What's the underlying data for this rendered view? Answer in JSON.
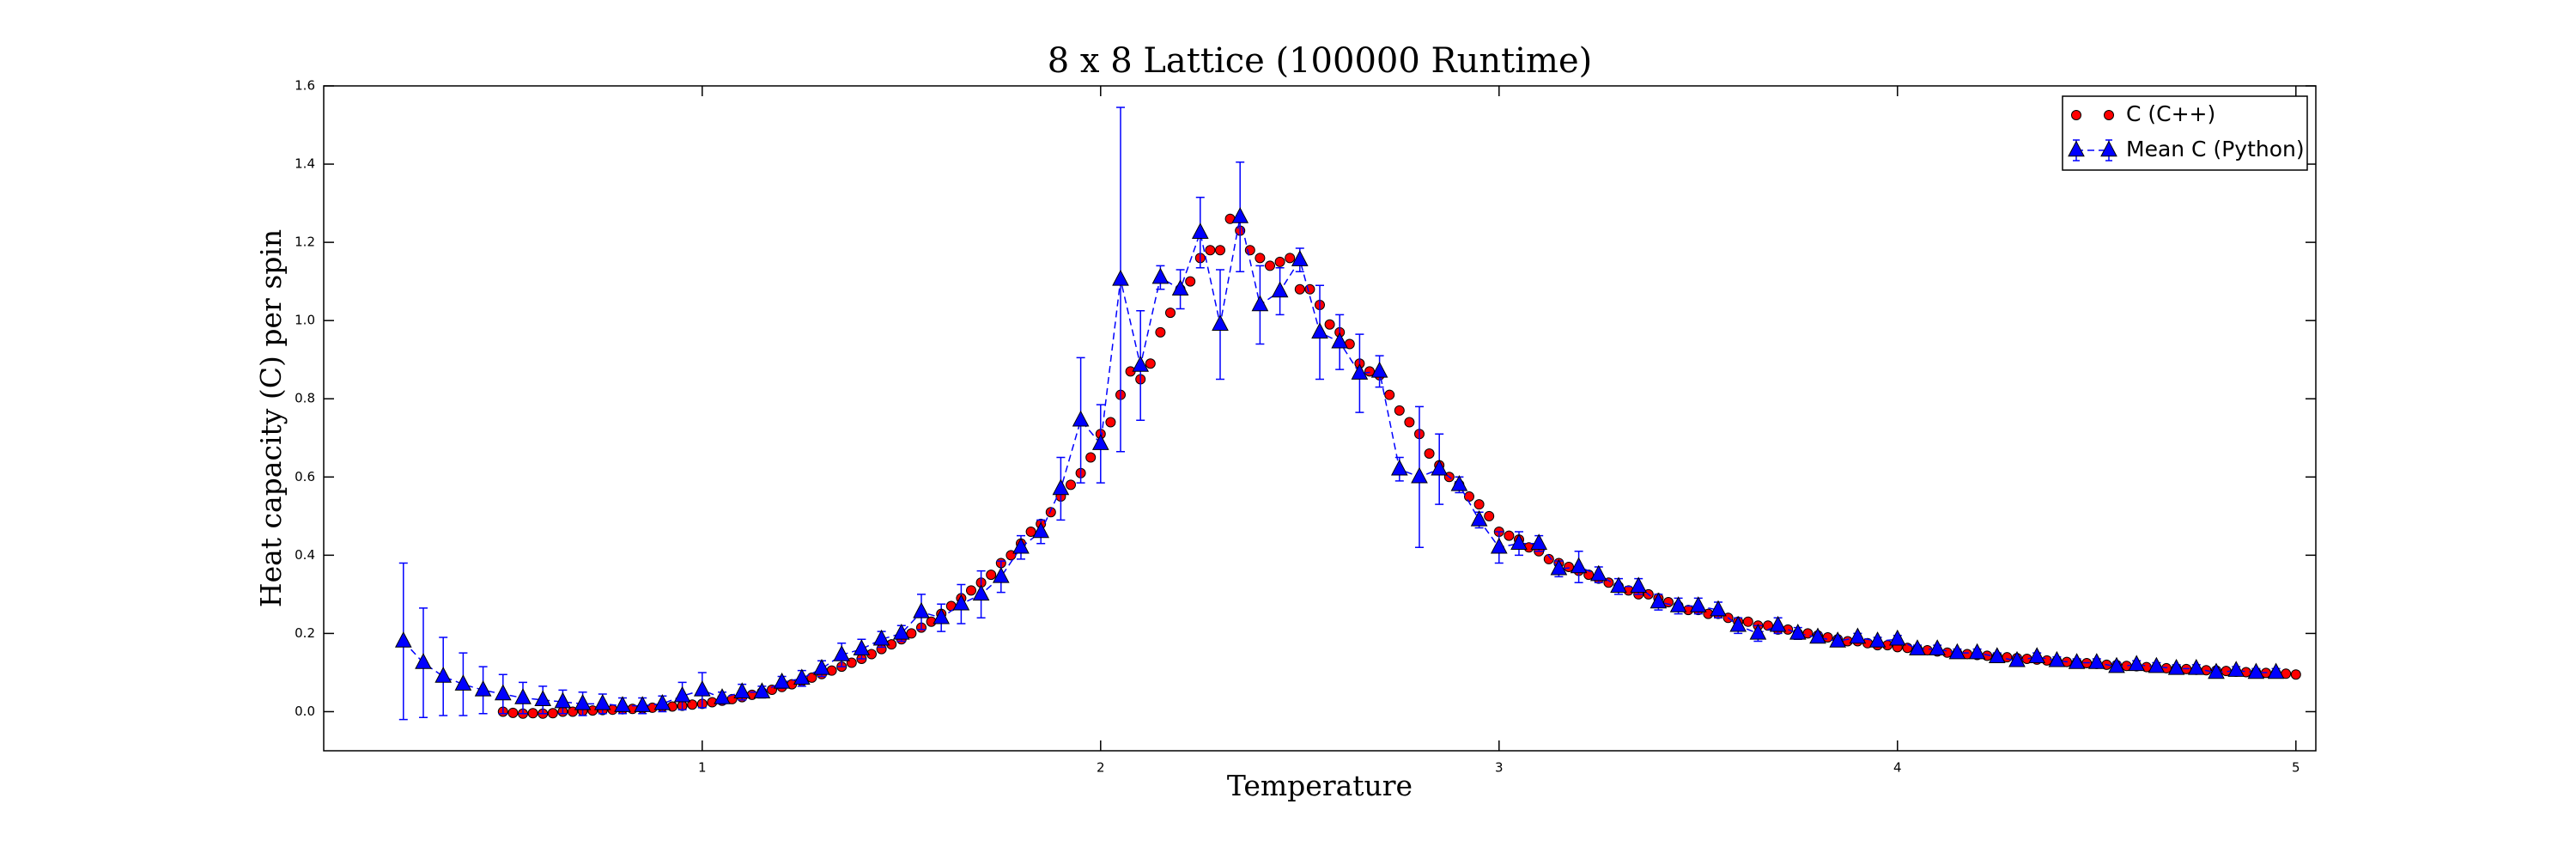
{
  "chart_data": {
    "type": "scatter",
    "title": "8 x 8 Lattice (100000 Runtime)",
    "xlabel": "Temperature",
    "ylabel": "Heat capacity (C) per spin",
    "xlim": [
      0.05,
      5.05
    ],
    "ylim": [
      -0.1,
      1.6
    ],
    "xticks": [
      1,
      2,
      3,
      4,
      5
    ],
    "yticks": [
      {
        "value": 0,
        "label": "0.0"
      },
      0.2,
      0.4,
      0.6,
      0.8,
      {
        "value": 1,
        "label": "1.0"
      },
      1.2,
      1.4,
      1.6
    ],
    "grid": false,
    "legend": "upper right",
    "series": [
      {
        "name": "C (C++)",
        "color": "#ff0000",
        "marker": "circle",
        "x": [
          0.5,
          0.525,
          0.55,
          0.575,
          0.6,
          0.625,
          0.65,
          0.675,
          0.7,
          0.725,
          0.75,
          0.775,
          0.8,
          0.825,
          0.85,
          0.875,
          0.9,
          0.925,
          0.95,
          0.975,
          1,
          1.025,
          1.05,
          1.075,
          1.1,
          1.125,
          1.15,
          1.175,
          1.2,
          1.225,
          1.25,
          1.275,
          1.3,
          1.325,
          1.35,
          1.375,
          1.4,
          1.425,
          1.45,
          1.475,
          1.5,
          1.525,
          1.55,
          1.575,
          1.6,
          1.625,
          1.65,
          1.675,
          1.7,
          1.725,
          1.75,
          1.775,
          1.8,
          1.825,
          1.85,
          1.875,
          1.9,
          1.925,
          1.95,
          1.975,
          2,
          2.025,
          2.05,
          2.075,
          2.1,
          2.125,
          2.15,
          2.175,
          2.2,
          2.225,
          2.25,
          2.275,
          2.3,
          2.325,
          2.35,
          2.375,
          2.4,
          2.425,
          2.45,
          2.475,
          2.5,
          2.525,
          2.55,
          2.575,
          2.6,
          2.625,
          2.65,
          2.675,
          2.7,
          2.725,
          2.75,
          2.775,
          2.8,
          2.825,
          2.85,
          2.875,
          2.9,
          2.925,
          2.95,
          2.975,
          3,
          3.025,
          3.05,
          3.075,
          3.1,
          3.125,
          3.15,
          3.175,
          3.2,
          3.225,
          3.25,
          3.275,
          3.3,
          3.325,
          3.35,
          3.375,
          3.4,
          3.425,
          3.45,
          3.475,
          3.5,
          3.525,
          3.55,
          3.575,
          3.6,
          3.625,
          3.65,
          3.675,
          3.7,
          3.725,
          3.75,
          3.775,
          3.8,
          3.825,
          3.85,
          3.875,
          3.9,
          3.925,
          3.95,
          3.975,
          4,
          4.025,
          4.05,
          4.075,
          4.1,
          4.125,
          4.15,
          4.175,
          4.2,
          4.225,
          4.25,
          4.275,
          4.3,
          4.325,
          4.35,
          4.375,
          4.4,
          4.425,
          4.45,
          4.475,
          4.5,
          4.525,
          4.55,
          4.575,
          4.6,
          4.625,
          4.65,
          4.675,
          4.7,
          4.725,
          4.75,
          4.775,
          4.8,
          4.825,
          4.85,
          4.875,
          4.9,
          4.925,
          4.95,
          4.975,
          5
        ],
        "values": [
          0.0,
          -0.003,
          -0.005,
          -0.004,
          -0.005,
          -0.004,
          0.0,
          0.0,
          0.002,
          0.003,
          0.004,
          0.005,
          0.006,
          0.007,
          0.008,
          0.01,
          0.012,
          0.013,
          0.015,
          0.018,
          0.02,
          0.024,
          0.028,
          0.032,
          0.037,
          0.043,
          0.05,
          0.056,
          0.063,
          0.07,
          0.078,
          0.087,
          0.096,
          0.105,
          0.115,
          0.125,
          0.135,
          0.147,
          0.16,
          0.172,
          0.185,
          0.2,
          0.215,
          0.23,
          0.25,
          0.27,
          0.29,
          0.31,
          0.33,
          0.35,
          0.38,
          0.4,
          0.43,
          0.46,
          0.48,
          0.51,
          0.55,
          0.58,
          0.61,
          0.65,
          0.71,
          0.74,
          0.81,
          0.87,
          0.85,
          0.89,
          0.97,
          1.02,
          1.08,
          1.1,
          1.16,
          1.18,
          1.18,
          1.26,
          1.23,
          1.18,
          1.16,
          1.14,
          1.15,
          1.16,
          1.08,
          1.08,
          1.04,
          0.99,
          0.97,
          0.94,
          0.89,
          0.87,
          0.86,
          0.81,
          0.77,
          0.74,
          0.71,
          0.66,
          0.63,
          0.6,
          0.58,
          0.55,
          0.53,
          0.5,
          0.46,
          0.45,
          0.44,
          0.42,
          0.41,
          0.39,
          0.38,
          0.37,
          0.36,
          0.35,
          0.34,
          0.33,
          0.32,
          0.31,
          0.3,
          0.3,
          0.29,
          0.28,
          0.27,
          0.26,
          0.26,
          0.25,
          0.25,
          0.24,
          0.23,
          0.23,
          0.22,
          0.22,
          0.21,
          0.21,
          0.2,
          0.2,
          0.195,
          0.19,
          0.185,
          0.18,
          0.18,
          0.175,
          0.17,
          0.17,
          0.165,
          0.163,
          0.16,
          0.157,
          0.154,
          0.151,
          0.149,
          0.147,
          0.145,
          0.143,
          0.141,
          0.139,
          0.137,
          0.135,
          0.133,
          0.131,
          0.129,
          0.127,
          0.125,
          0.124,
          0.122,
          0.12,
          0.119,
          0.117,
          0.116,
          0.114,
          0.113,
          0.111,
          0.11,
          0.109,
          0.107,
          0.106,
          0.105,
          0.104,
          0.102,
          0.101,
          0.1,
          0.099,
          0.098,
          0.097,
          0.095
        ]
      },
      {
        "name": "Mean C (Python)",
        "color": "#0000ff",
        "marker": "triangle",
        "x": [
          0.25,
          0.3,
          0.35,
          0.4,
          0.45,
          0.5,
          0.55,
          0.6,
          0.65,
          0.7,
          0.75,
          0.8,
          0.85,
          0.9,
          0.95,
          1,
          1.05,
          1.1,
          1.15,
          1.2,
          1.25,
          1.3,
          1.35,
          1.4,
          1.45,
          1.5,
          1.55,
          1.6,
          1.65,
          1.7,
          1.75,
          1.8,
          1.85,
          1.9,
          1.95,
          2,
          2.05,
          2.1,
          2.15,
          2.2,
          2.25,
          2.3,
          2.35,
          2.4,
          2.45,
          2.5,
          2.55,
          2.6,
          2.65,
          2.7,
          2.75,
          2.8,
          2.85,
          2.9,
          2.95,
          3,
          3.05,
          3.1,
          3.15,
          3.2,
          3.25,
          3.3,
          3.35,
          3.4,
          3.45,
          3.5,
          3.55,
          3.6,
          3.65,
          3.7,
          3.75,
          3.8,
          3.85,
          3.9,
          3.95,
          4,
          4.05,
          4.1,
          4.15,
          4.2,
          4.25,
          4.3,
          4.35,
          4.4,
          4.45,
          4.5,
          4.55,
          4.6,
          4.65,
          4.7,
          4.75,
          4.8,
          4.85,
          4.9,
          4.95
        ],
        "values": [
          0.18,
          0.125,
          0.09,
          0.07,
          0.055,
          0.045,
          0.035,
          0.03,
          0.025,
          0.02,
          0.02,
          0.015,
          0.015,
          0.02,
          0.04,
          0.055,
          0.035,
          0.05,
          0.05,
          0.075,
          0.085,
          0.11,
          0.145,
          0.16,
          0.185,
          0.2,
          0.255,
          0.24,
          0.275,
          0.3,
          0.345,
          0.42,
          0.46,
          0.57,
          0.745,
          0.685,
          1.105,
          0.885,
          1.11,
          1.08,
          1.225,
          0.99,
          1.265,
          1.04,
          1.075,
          1.155,
          0.97,
          0.945,
          0.865,
          0.87,
          0.62,
          0.6,
          0.62,
          0.58,
          0.49,
          0.42,
          0.43,
          0.43,
          0.365,
          0.37,
          0.35,
          0.32,
          0.32,
          0.28,
          0.27,
          0.27,
          0.26,
          0.22,
          0.2,
          0.22,
          0.2,
          0.19,
          0.18,
          0.19,
          0.18,
          0.185,
          0.16,
          0.16,
          0.15,
          0.15,
          0.14,
          0.13,
          0.14,
          0.13,
          0.125,
          0.125,
          0.115,
          0.12,
          0.115,
          0.11,
          0.11,
          0.1,
          0.105,
          0.1,
          0.1
        ],
        "errors": [
          0.2,
          0.14,
          0.1,
          0.08,
          0.06,
          0.05,
          0.04,
          0.035,
          0.03,
          0.03,
          0.025,
          0.02,
          0.02,
          0.02,
          0.035,
          0.045,
          0.015,
          0.02,
          0.015,
          0.015,
          0.02,
          0.02,
          0.03,
          0.025,
          0.02,
          0.02,
          0.045,
          0.035,
          0.05,
          0.06,
          0.04,
          0.03,
          0.03,
          0.08,
          0.16,
          0.1,
          0.44,
          0.14,
          0.03,
          0.05,
          0.09,
          0.14,
          0.14,
          0.1,
          0.06,
          0.03,
          0.12,
          0.07,
          0.1,
          0.04,
          0.03,
          0.18,
          0.09,
          0.02,
          0.02,
          0.04,
          0.03,
          0.02,
          0.02,
          0.04,
          0.02,
          0.02,
          0.02,
          0.02,
          0.02,
          0.02,
          0.02,
          0.02,
          0.02,
          0.02,
          0.015,
          0.01,
          0.01,
          0.01,
          0.01,
          0.01,
          0.01,
          0.01,
          0.01,
          0.01,
          0.01,
          0.01,
          0.01,
          0.01,
          0.01,
          0.01,
          0.01,
          0.01,
          0.01,
          0.01,
          0.01,
          0.01,
          0.01,
          0.01,
          0.01
        ]
      }
    ]
  }
}
